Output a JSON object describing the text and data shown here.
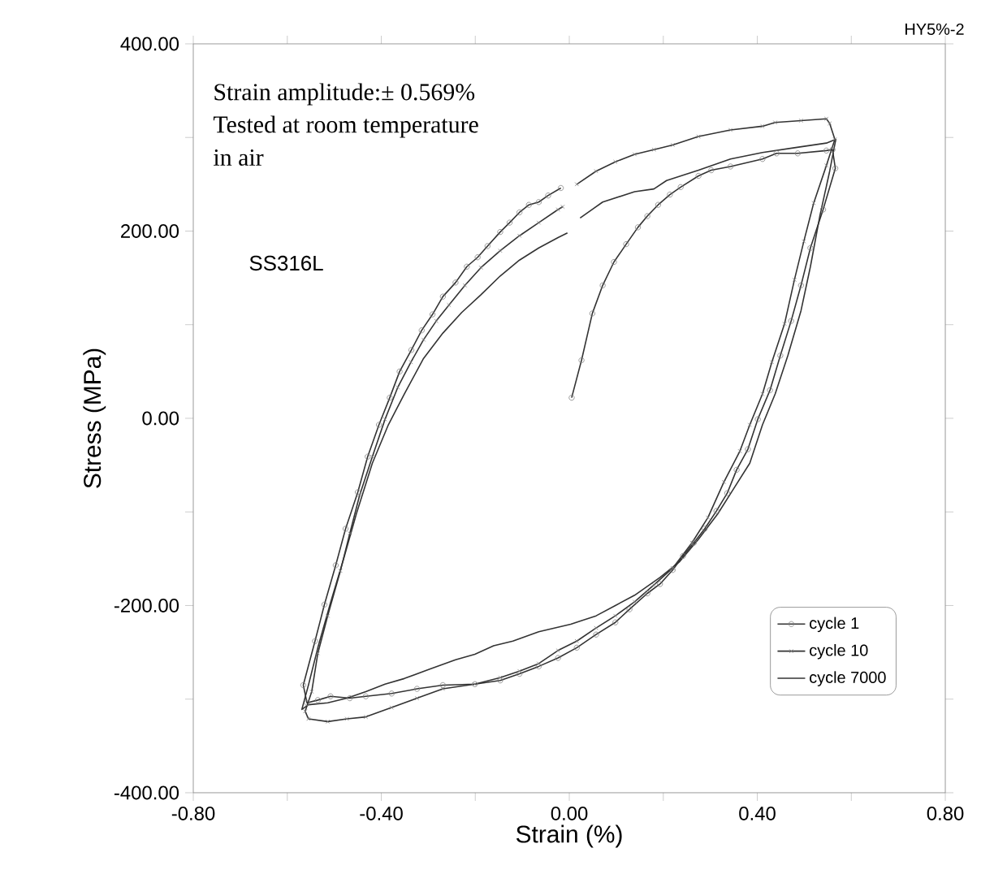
{
  "chart_data": {
    "type": "line",
    "xlabel": "Strain (%)",
    "ylabel": "Stress (MPa)",
    "xlim": [
      -0.8,
      0.8
    ],
    "ylim": [
      -400,
      400
    ],
    "xticks": [
      {
        "value": -0.8,
        "label": "-0.80"
      },
      {
        "value": -0.6,
        "label": null
      },
      {
        "value": -0.4,
        "label": "-0.40"
      },
      {
        "value": -0.2,
        "label": null
      },
      {
        "value": 0,
        "label": "0.00"
      },
      {
        "value": 0.2,
        "label": null
      },
      {
        "value": 0.4,
        "label": "0.40"
      },
      {
        "value": 0.6,
        "label": null
      },
      {
        "value": 0.8,
        "label": "0.80"
      }
    ],
    "yticks": [
      {
        "value": -400,
        "label": "-400.00"
      },
      {
        "value": -300,
        "label": null
      },
      {
        "value": -200,
        "label": "-200.00"
      },
      {
        "value": -100,
        "label": null
      },
      {
        "value": 0,
        "label": "0.00"
      },
      {
        "value": 100,
        "label": null
      },
      {
        "value": 200,
        "label": "200.00"
      },
      {
        "value": 300,
        "label": null
      },
      {
        "value": 400,
        "label": "400.00"
      }
    ],
    "grid": false,
    "legend": "bottom right",
    "line_style": "solid",
    "annotations": [
      "Strain amplitude:± 0.569%",
      "Tested at room temperature",
      "in air",
      "SS316L",
      "HY5%-2"
    ],
    "series": [
      {
        "name": "cycle 1",
        "color": "#333333",
        "marker": "circle",
        "x": [
          0.005,
          0.026,
          0.049,
          0.071,
          0.095,
          0.121,
          0.146,
          0.166,
          0.189,
          0.214,
          0.237,
          0.275,
          0.302,
          0.343,
          0.411,
          0.441,
          0.486,
          0.547,
          0.56,
          0.566,
          0.54,
          0.513,
          0.493,
          0.472,
          0.449,
          0.427,
          0.401,
          0.38,
          0.356,
          0.336,
          0.313,
          0.288,
          0.265,
          0.242,
          0.22,
          0.193,
          0.166,
          0.128,
          0.098,
          0.057,
          0.016,
          -0.024,
          -0.065,
          -0.106,
          -0.147,
          -0.201,
          -0.269,
          -0.324,
          -0.378,
          -0.433,
          -0.467,
          -0.508,
          -0.535,
          -0.558,
          -0.566,
          -0.541,
          -0.521,
          -0.497,
          -0.476,
          -0.45,
          -0.429,
          -0.405,
          -0.382,
          -0.361,
          -0.336,
          -0.314,
          -0.291,
          -0.269,
          -0.242,
          -0.218,
          -0.195,
          -0.174,
          -0.147,
          -0.127,
          -0.106,
          -0.086,
          -0.065,
          -0.045,
          -0.018
        ],
        "values": [
          22,
          62,
          112,
          142,
          167,
          186,
          204,
          216,
          228,
          239,
          247,
          259,
          265,
          269,
          277,
          283,
          283,
          286,
          287,
          267,
          223,
          182,
          142,
          104,
          67,
          30,
          -1,
          -33,
          -55,
          -80,
          -99,
          -118,
          -133,
          -147,
          -162,
          -177,
          -187,
          -204,
          -218,
          -231,
          -245,
          -256,
          -265,
          -273,
          -280,
          -284,
          -285,
          -289,
          -294,
          -297,
          -299,
          -297,
          -301,
          -304,
          -285,
          -238,
          -199,
          -157,
          -118,
          -79,
          -41,
          -7,
          22,
          50,
          73,
          94,
          111,
          130,
          145,
          162,
          172,
          184,
          199,
          209,
          220,
          228,
          231,
          238,
          246
        ]
      },
      {
        "name": "cycle 10",
        "color": "#333333",
        "marker": "cross",
        "x": [
          0.016,
          0.057,
          0.098,
          0.139,
          0.18,
          0.22,
          0.275,
          0.343,
          0.411,
          0.438,
          0.493,
          0.547,
          0.554,
          0.565,
          0.547,
          0.52,
          0.499,
          0.479,
          0.458,
          0.431,
          0.411,
          0.384,
          0.363,
          0.329,
          0.295,
          0.261,
          0.22,
          0.18,
          0.139,
          0.098,
          0.057,
          0.016,
          -0.024,
          -0.065,
          -0.106,
          -0.147,
          -0.201,
          -0.269,
          -0.324,
          -0.378,
          -0.433,
          -0.473,
          -0.514,
          -0.555,
          -0.562,
          -0.548,
          -0.535,
          -0.514,
          -0.487,
          -0.467,
          -0.446,
          -0.419,
          -0.392,
          -0.365,
          -0.337,
          -0.31,
          -0.283,
          -0.256,
          -0.222,
          -0.188,
          -0.147,
          -0.106,
          -0.065,
          -0.024,
          -0.014
        ],
        "values": [
          250,
          264,
          274,
          282,
          287,
          292,
          301,
          308,
          312,
          316,
          318,
          320,
          315,
          298,
          270,
          230,
          189,
          148,
          101,
          60,
          26,
          -7,
          -35,
          -68,
          -106,
          -133,
          -160,
          -178,
          -196,
          -211,
          -224,
          -238,
          -248,
          -262,
          -270,
          -277,
          -284,
          -289,
          -299,
          -309,
          -319,
          -321,
          -324,
          -321,
          -313,
          -292,
          -251,
          -211,
          -163,
          -123,
          -82,
          -41,
          -1,
          33,
          60,
          84,
          104,
          121,
          142,
          161,
          179,
          195,
          209,
          223,
          226
        ]
      },
      {
        "name": "cycle 7000",
        "color": "#333333",
        "marker": "none",
        "x": [
          0.023,
          0.071,
          0.139,
          0.18,
          0.207,
          0.275,
          0.343,
          0.411,
          0.479,
          0.547,
          0.567,
          0.554,
          0.533,
          0.513,
          0.493,
          0.465,
          0.438,
          0.411,
          0.384,
          0.35,
          0.316,
          0.275,
          0.235,
          0.193,
          0.139,
          0.098,
          0.057,
          0.003,
          -0.065,
          -0.12,
          -0.161,
          -0.201,
          -0.242,
          -0.297,
          -0.351,
          -0.392,
          -0.433,
          -0.473,
          -0.514,
          -0.555,
          -0.569,
          -0.555,
          -0.535,
          -0.508,
          -0.48,
          -0.453,
          -0.419,
          -0.385,
          -0.351,
          -0.31,
          -0.269,
          -0.229,
          -0.188,
          -0.147,
          -0.106,
          -0.065,
          -0.024,
          -0.004
        ],
        "values": [
          214,
          231,
          242,
          245,
          254,
          265,
          277,
          284,
          289,
          294,
          298,
          264,
          216,
          162,
          115,
          67,
          26,
          -7,
          -48,
          -75,
          -102,
          -129,
          -153,
          -170,
          -189,
          -200,
          -211,
          -220,
          -228,
          -238,
          -243,
          -252,
          -258,
          -268,
          -278,
          -284,
          -292,
          -299,
          -304,
          -306,
          -311,
          -285,
          -245,
          -197,
          -150,
          -102,
          -48,
          -7,
          26,
          64,
          91,
          113,
          132,
          152,
          169,
          182,
          193,
          198
        ]
      }
    ]
  }
}
